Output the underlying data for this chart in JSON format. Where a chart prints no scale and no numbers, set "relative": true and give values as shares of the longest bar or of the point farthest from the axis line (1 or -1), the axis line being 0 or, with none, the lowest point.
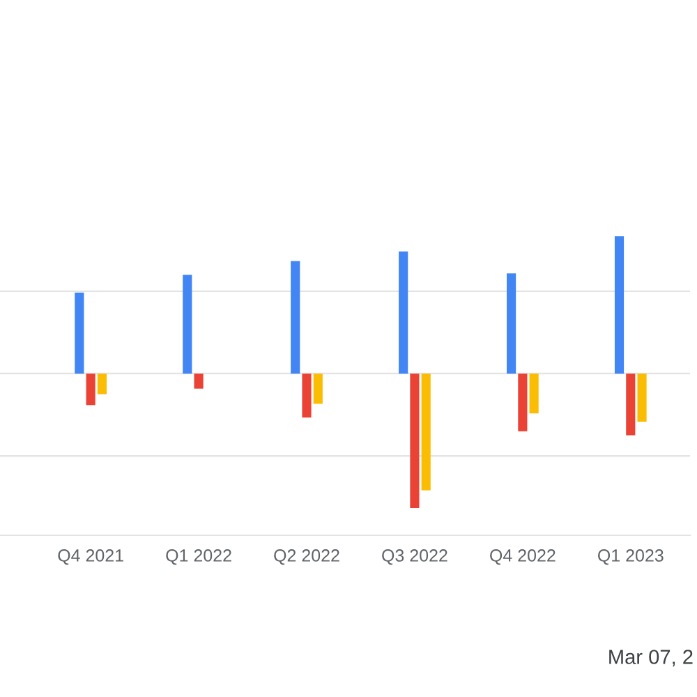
{
  "chart_data": {
    "type": "bar",
    "relative": true,
    "categories": [
      "Q4 2021",
      "Q1 2022",
      "Q2 2022",
      "Q3 2022",
      "Q4 2022",
      "Q1 2023"
    ],
    "series": [
      {
        "color": "#4285f4",
        "values": [
          0.59,
          0.72,
          0.82,
          0.89,
          0.73,
          1
        ]
      },
      {
        "color": "#ea4335",
        "values": [
          -0.23,
          -0.11,
          -0.32,
          -0.98,
          -0.42,
          -0.45
        ]
      },
      {
        "color": "#fbbc04",
        "values": [
          -0.15,
          null,
          -0.22,
          -0.85,
          -0.29,
          -0.35
        ]
      }
    ],
    "grid": "y",
    "tick_labels": "x",
    "annotations": [
      "Mar 07, 2"
    ]
  }
}
